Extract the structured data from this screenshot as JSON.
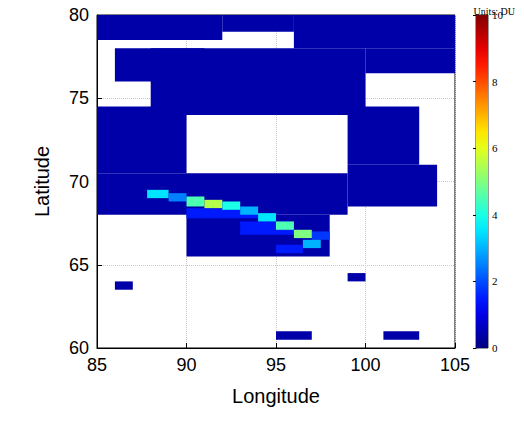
{
  "chart_data": {
    "type": "heatmap",
    "x_label": "Longitude",
    "y_label": "Latitude",
    "xlim": [
      85,
      105
    ],
    "ylim": [
      60,
      80
    ],
    "xticks": [
      85,
      90,
      95,
      100,
      105
    ],
    "yticks": [
      60,
      65,
      70,
      75,
      80
    ],
    "grid": true,
    "cells": [
      [
        85,
        78.5,
        92,
        80,
        0.4
      ],
      [
        92,
        79,
        96,
        80,
        0.4
      ],
      [
        96,
        78,
        105,
        80,
        0.4
      ],
      [
        86,
        76,
        91,
        78,
        0.4
      ],
      [
        88,
        74,
        100,
        78,
        0.4
      ],
      [
        100,
        76.5,
        105,
        78,
        0.4
      ],
      [
        85,
        70.5,
        90,
        74.5,
        0.4
      ],
      [
        99,
        71,
        103,
        74.5,
        0.4
      ],
      [
        85,
        68,
        99,
        70.5,
        0.4
      ],
      [
        99,
        68.5,
        104,
        71,
        0.4
      ],
      [
        90,
        65.5,
        98,
        68,
        0.4
      ],
      [
        86,
        63.5,
        87,
        64,
        0.4
      ],
      [
        95,
        60.5,
        97,
        61,
        0.4
      ],
      [
        101,
        60.5,
        103,
        61,
        0.4
      ],
      [
        99,
        64,
        100,
        64.5,
        0.4
      ],
      [
        90,
        67.8,
        94,
        68.4,
        1.5
      ],
      [
        93,
        66.8,
        96,
        67.6,
        1.5
      ],
      [
        97,
        66.5,
        98,
        67,
        1.8
      ],
      [
        87.8,
        69,
        89,
        69.5,
        3.5
      ],
      [
        89,
        68.8,
        90,
        69.3,
        2.5
      ],
      [
        90,
        68.5,
        91,
        69.1,
        4.5
      ],
      [
        91,
        68.4,
        92,
        68.9,
        5.5
      ],
      [
        92,
        68.3,
        93,
        68.8,
        4
      ],
      [
        93,
        68,
        94,
        68.5,
        3
      ],
      [
        94,
        67.6,
        95,
        68.1,
        3.5
      ],
      [
        95,
        67.1,
        96,
        67.6,
        4.5
      ],
      [
        96,
        66.6,
        97,
        67.1,
        5
      ],
      [
        96.5,
        66,
        97.5,
        66.5,
        3
      ],
      [
        95,
        65.7,
        96.5,
        66.2,
        1.5
      ]
    ],
    "colorbar": {
      "label": "Units: DU",
      "range": [
        0,
        10
      ],
      "ticks": [
        0,
        2,
        4,
        6,
        8,
        10
      ]
    }
  }
}
